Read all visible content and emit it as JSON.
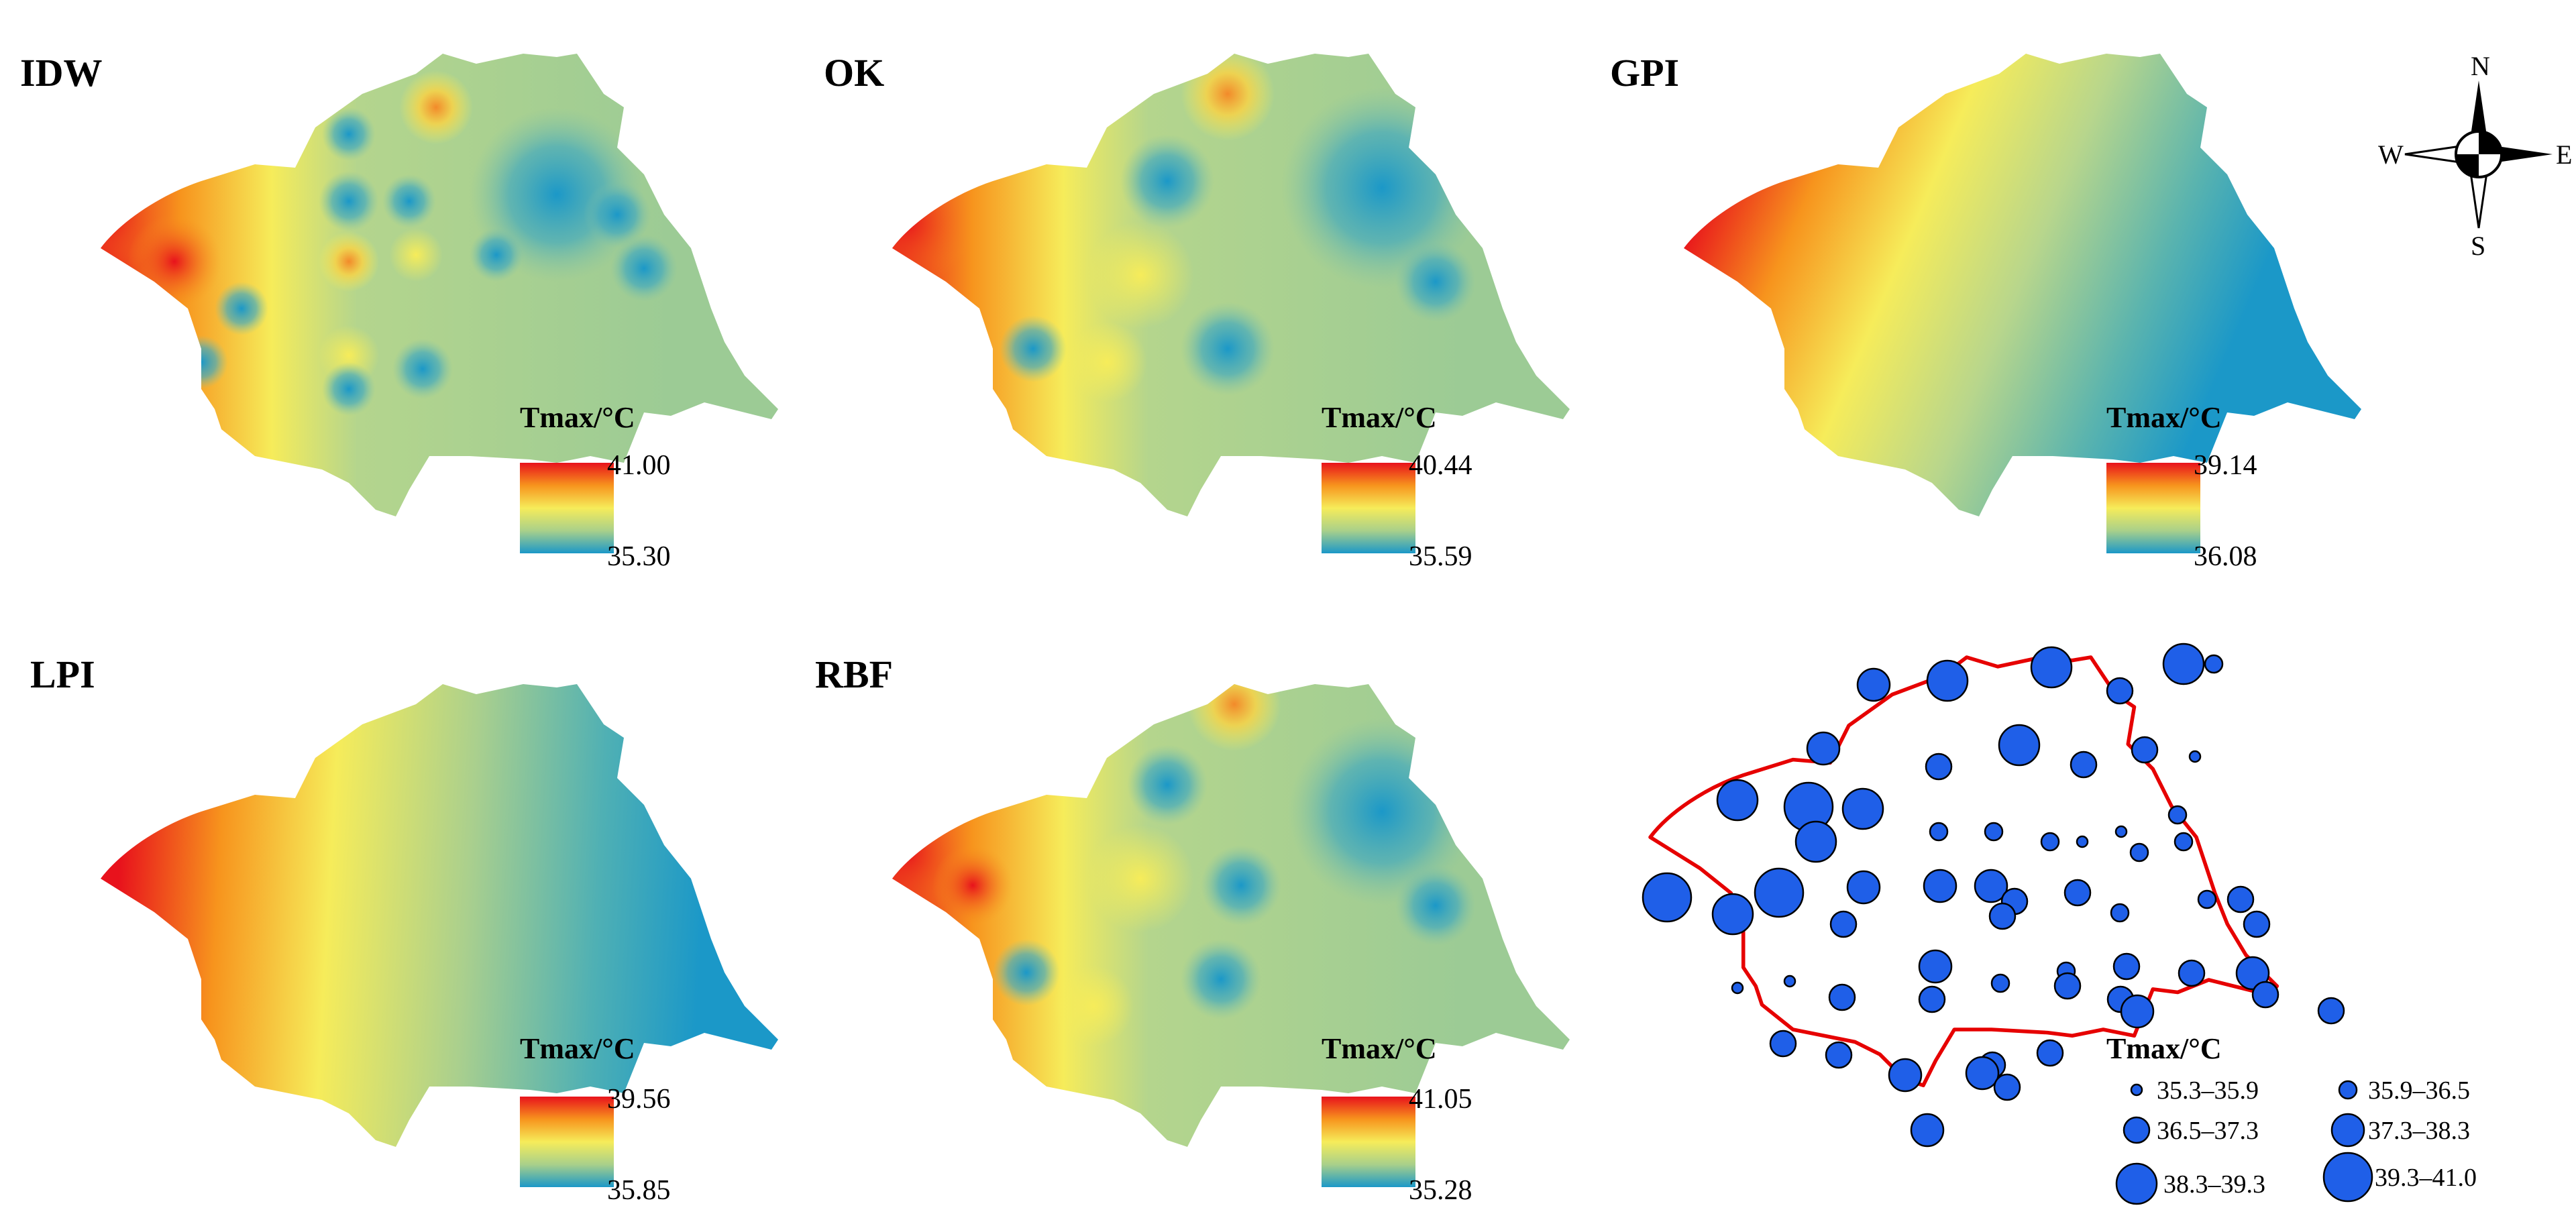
{
  "colors": {
    "high": "#e8121c",
    "mid": "#f6ec5a",
    "low": "#1b98c8",
    "station": "#1f5fe8",
    "boundary": "#e60000"
  },
  "panels": [
    {
      "id": "idw",
      "title": "IDW",
      "legend_title": "Tmax/°C",
      "max": "41.00",
      "min": "35.30"
    },
    {
      "id": "ok",
      "title": "OK",
      "legend_title": "Tmax/°C",
      "max": "40.44",
      "min": "35.59"
    },
    {
      "id": "gpi",
      "title": "GPI",
      "legend_title": "Tmax/°C",
      "max": "39.14",
      "min": "36.08"
    },
    {
      "id": "lpi",
      "title": "LPI",
      "legend_title": "Tmax/°C",
      "max": "39.56",
      "min": "35.85"
    },
    {
      "id": "rbf",
      "title": "RBF",
      "legend_title": "Tmax/°C",
      "max": "41.05",
      "min": "35.28"
    }
  ],
  "compass": {
    "n": "N",
    "s": "S",
    "e": "E",
    "w": "W"
  },
  "stations": {
    "legend_title": "Tmax/°C",
    "classes": [
      {
        "label": "35.3–35.9"
      },
      {
        "label": "35.9–36.5"
      },
      {
        "label": "36.5–37.3"
      },
      {
        "label": "37.3–38.3"
      },
      {
        "label": "38.3–39.3"
      },
      {
        "label": "39.3–41.0"
      }
    ]
  }
}
